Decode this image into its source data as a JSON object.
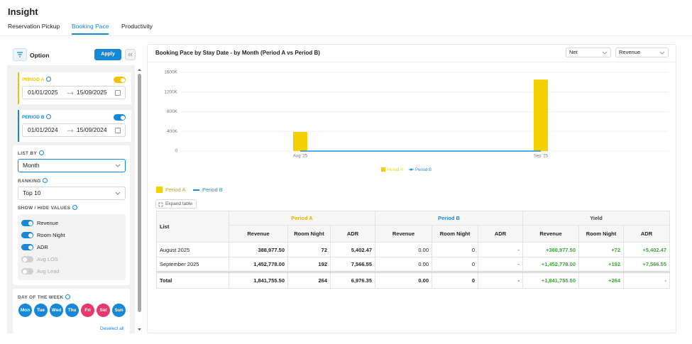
{
  "header": {
    "title": "Insight",
    "tabs": [
      "Reservation Pickup",
      "Booking Pace",
      "Productivity"
    ]
  },
  "sidebar": {
    "title": "Option",
    "apply": "Apply",
    "periods": [
      {
        "label": "PERIOD A",
        "from": "01/01/2025",
        "to": "15/09/2025",
        "on": true,
        "color": "#f2c200"
      },
      {
        "label": "PERIOD B",
        "from": "01/01/2024",
        "to": "15/09/2024",
        "on": true,
        "color": "#1687d9"
      }
    ],
    "list_by": {
      "label": "LIST BY",
      "value": "Month"
    },
    "ranking": {
      "label": "RANKING",
      "value": "Top 10"
    },
    "show_hide": {
      "label": "SHOW / HIDE VALUES",
      "items": [
        {
          "label": "Revenue",
          "on": true
        },
        {
          "label": "Room Night",
          "on": true
        },
        {
          "label": "ADR",
          "on": true
        },
        {
          "label": "Avg LOS",
          "on": false
        },
        {
          "label": "Avg Lead",
          "on": false
        }
      ]
    },
    "day_of_week": {
      "label": "DAY OF THE WEEK",
      "days": [
        {
          "label": "Mon",
          "color": "#1687d9"
        },
        {
          "label": "Tue",
          "color": "#1687d9"
        },
        {
          "label": "Wed",
          "color": "#1687d9"
        },
        {
          "label": "Thu",
          "color": "#1687d9"
        },
        {
          "label": "Fri",
          "color": "#e8396a"
        },
        {
          "label": "Sat",
          "color": "#e8396a"
        },
        {
          "label": "Sun",
          "color": "#1687d9"
        }
      ],
      "deselect": "Deselect all"
    }
  },
  "panel": {
    "title": "Booking Pace by Stay Date - by Month (Period A vs Period B)",
    "selects": [
      "Net",
      "Revenue"
    ],
    "expand": "Expand table",
    "table": {
      "list": "List",
      "groups": [
        "Period A",
        "Period B",
        "Yield"
      ],
      "columns": [
        "Revenue",
        "Room Night",
        "ADR"
      ],
      "rows": [
        [
          "August 2025",
          "388,977.50",
          "72",
          "5,402.47",
          "0.00",
          "0",
          "-",
          "+388,977.50",
          "+72",
          "+5,402.47"
        ],
        [
          "September 2025",
          "1,452,778.00",
          "192",
          "7,566.55",
          "0.00",
          "0",
          "-",
          "+1,452,778.00",
          "+192",
          "+7,566.55"
        ],
        [
          "Total",
          "1,841,755.50",
          "264",
          "6,976.35",
          "0.00",
          "0",
          "-",
          "+1,841,755.50",
          "+264",
          "-"
        ]
      ]
    }
  },
  "chart_data": {
    "type": "bar",
    "categories": [
      "Aug '25",
      "Sep '25"
    ],
    "series": [
      {
        "name": "Period A",
        "type": "bar",
        "color": "#f5d000",
        "values": [
          388977.5,
          1452778
        ]
      },
      {
        "name": "Period B",
        "type": "line",
        "color": "#1a8fd6",
        "values": [
          0,
          0
        ]
      }
    ],
    "ylim": [
      0,
      1600000
    ],
    "yticks": [
      0,
      {
        "value": 400000,
        "label": "400K"
      },
      {
        "value": 800000,
        "label": "800K"
      },
      {
        "value": 1200000,
        "label": "1200K"
      },
      {
        "value": 1600000,
        "label": "1600K"
      }
    ],
    "grid": true
  }
}
